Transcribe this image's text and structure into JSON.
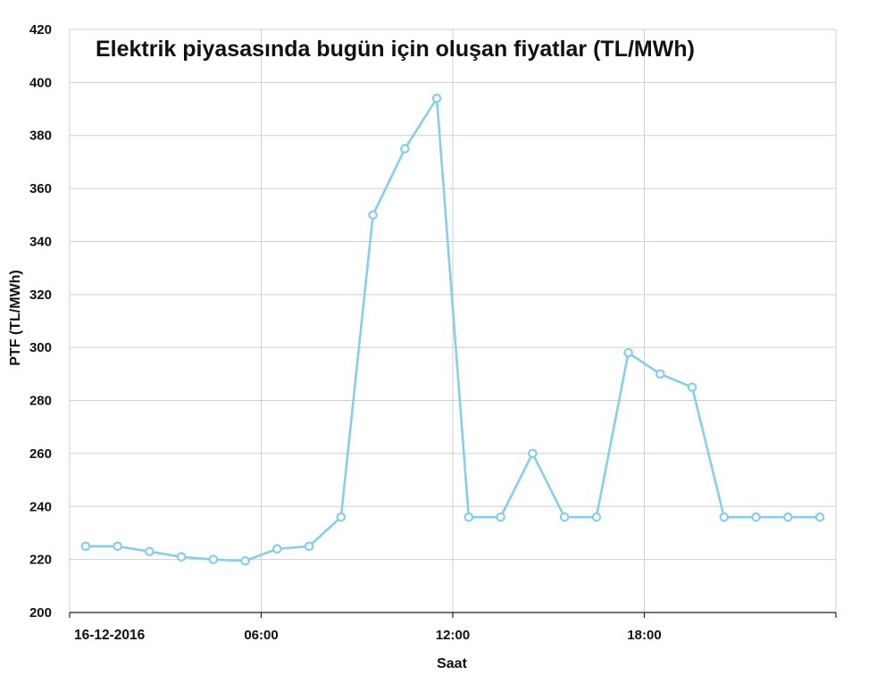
{
  "chart_data": {
    "type": "line",
    "title": "Elektrik piyasasında bugün için oluşan fiyatlar (TL/MWh)",
    "xlabel": "Saat",
    "ylabel": "PTF (TL/MWh)",
    "ylim": [
      200,
      420
    ],
    "y_ticks": [
      200,
      220,
      240,
      260,
      280,
      300,
      320,
      340,
      360,
      380,
      400,
      420
    ],
    "x_ticks": [
      {
        "hour": 0,
        "label": "16-12-2016"
      },
      {
        "hour": 6,
        "label": "06:00"
      },
      {
        "hour": 12,
        "label": "12:00"
      },
      {
        "hour": 18,
        "label": "18:00"
      }
    ],
    "x": [
      0.5,
      1.5,
      2.5,
      3.5,
      4.5,
      5.5,
      6.5,
      7.5,
      8.5,
      9.5,
      10.5,
      11.5,
      12.5,
      13.5,
      14.5,
      15.5,
      16.5,
      17.5,
      18.5,
      19.5,
      20.5,
      21.5,
      22.5,
      23.5
    ],
    "series": [
      {
        "values": [
          225,
          225,
          223,
          221,
          220,
          219.5,
          224,
          225,
          236,
          350,
          375,
          394,
          236,
          236,
          260,
          236,
          236,
          298,
          290,
          285,
          236,
          236,
          236,
          236
        ],
        "color": "#87cfe9"
      }
    ],
    "grid": true,
    "legend": "none"
  }
}
